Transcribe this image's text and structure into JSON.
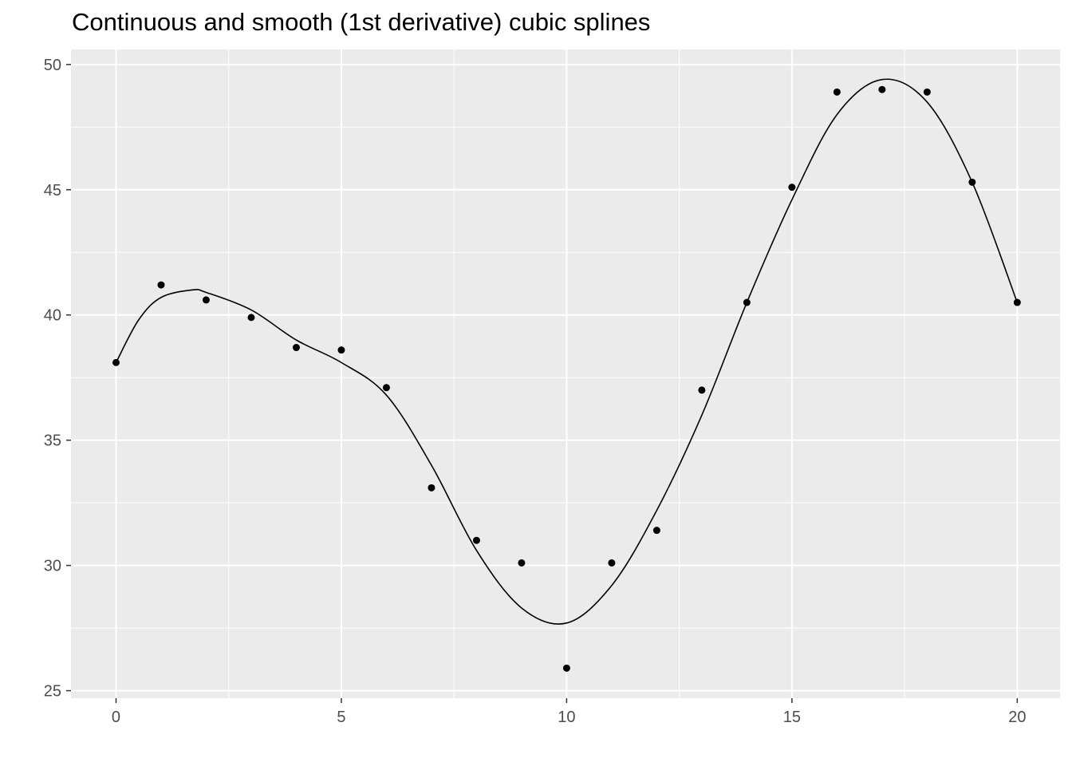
{
  "title": "Continuous and smooth (1st derivative) cubic splines",
  "chart_data": {
    "type": "scatter",
    "title": "Continuous and smooth (1st derivative) cubic splines",
    "xlabel": "",
    "ylabel": "",
    "xlim": [
      -1,
      20.95
    ],
    "ylim": [
      24.7,
      50.6
    ],
    "x_ticks": [
      0,
      5,
      10,
      15,
      20
    ],
    "y_ticks": [
      25,
      30,
      35,
      40,
      45,
      50
    ],
    "grid": true,
    "colors": {
      "panel": "#ebebeb",
      "grid": "#ffffff",
      "point": "#000000",
      "line": "#000000"
    },
    "series": [
      {
        "kind": "points",
        "x": [
          0,
          1,
          2,
          3,
          4,
          5,
          6,
          7,
          8,
          9,
          10,
          11,
          12,
          13,
          14,
          15,
          16,
          17,
          18,
          19,
          20
        ],
        "y": [
          38.1,
          41.2,
          40.6,
          39.9,
          38.7,
          38.6,
          37.1,
          33.1,
          31.0,
          30.1,
          25.9,
          30.1,
          31.4,
          37.0,
          40.5,
          45.1,
          48.9,
          49.0,
          48.9,
          45.3,
          40.5
        ]
      },
      {
        "kind": "line",
        "x": [
          0,
          0.5,
          1,
          1.7,
          2,
          3,
          4,
          5,
          6,
          7,
          8,
          9,
          10,
          11,
          12,
          13,
          14,
          15,
          16,
          17,
          18,
          19,
          20
        ],
        "y": [
          38.1,
          39.8,
          40.7,
          41.0,
          40.9,
          40.2,
          39.0,
          38.1,
          36.8,
          34.0,
          30.6,
          28.3,
          27.7,
          29.2,
          32.2,
          36.0,
          40.5,
          44.6,
          48.0,
          49.4,
          48.5,
          45.3,
          40.5
        ]
      }
    ]
  }
}
